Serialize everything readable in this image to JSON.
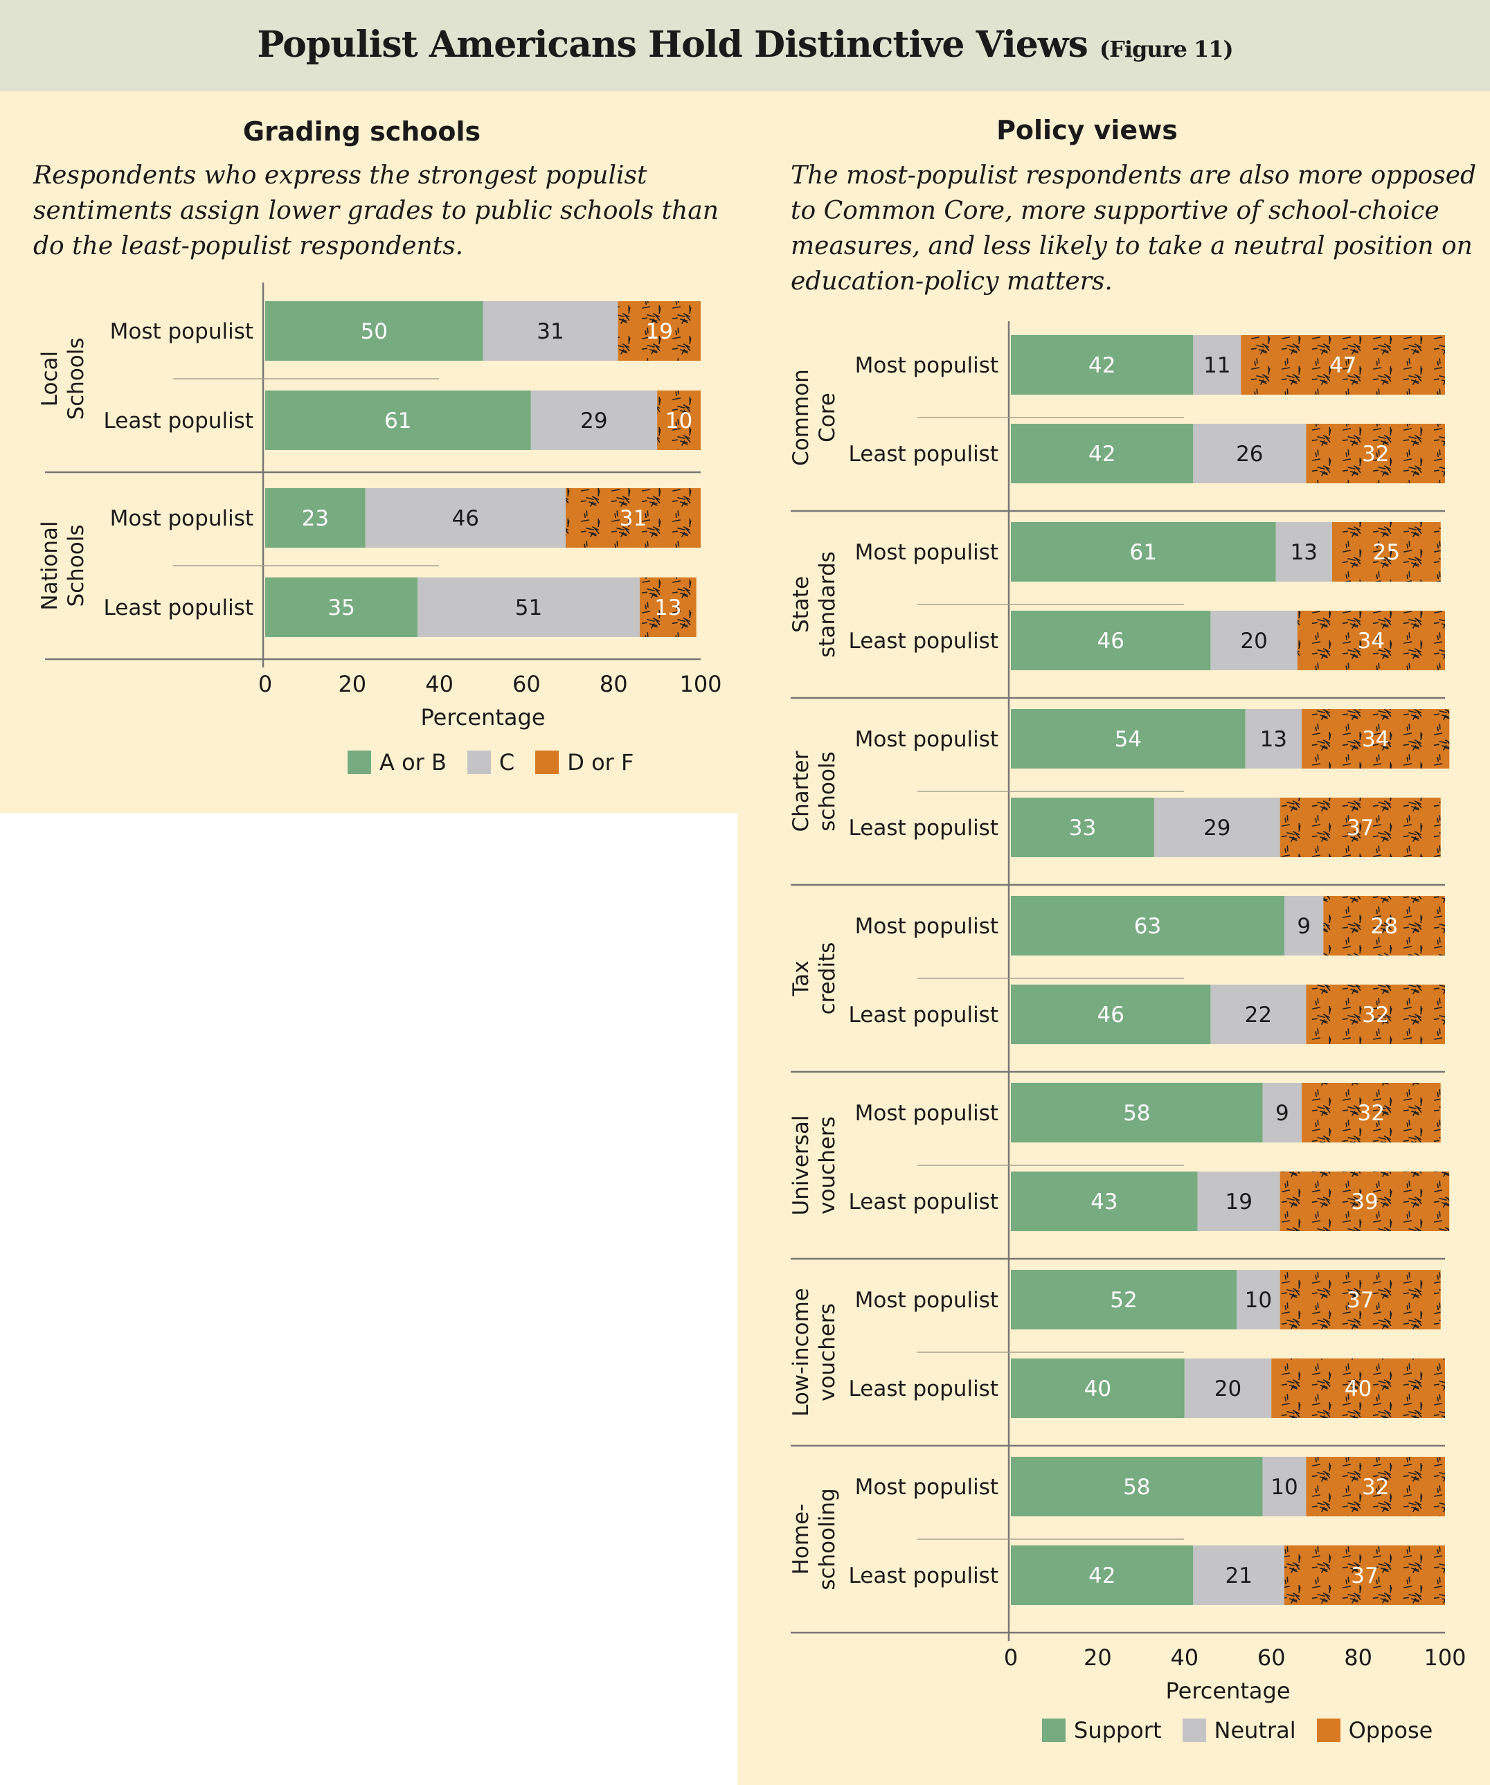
{
  "title": "Populist Americans Hold Distinctive Views",
  "figure_ref": "(Figure 11)",
  "colors": {
    "title_band": "#dfe3cf",
    "panel_bg": "#fdf1cf",
    "green": "#77ab80",
    "gray": "#c4c4c6",
    "orange": "#d77a22",
    "axis": "#777777",
    "pattern_ink": "#1f1f1f"
  },
  "left_panel": {
    "heading": "Grading schools",
    "subtitle_lines": [
      "Respondents who express the strongest populist",
      "sentiments assign lower grades to public schools than",
      "do the least-populist respondents."
    ]
  },
  "right_panel": {
    "heading": "Policy views",
    "subtitle_lines": [
      "The most-populist respondents are also more opposed",
      "to Common Core, more supportive of school-choice",
      "measures, and less likely to take a neutral position on",
      "education-policy matters."
    ]
  },
  "chart_data": [
    {
      "type": "bar",
      "orientation": "horizontal",
      "stacked": true,
      "xlabel": "Percentage",
      "xlim": [
        0,
        100
      ],
      "xticks": [
        0,
        20,
        40,
        60,
        80,
        100
      ],
      "legend": [
        "A or B",
        "C",
        "D or F"
      ],
      "legend_position": "bottom",
      "groups": [
        {
          "label_lines": [
            "Local",
            "Schools"
          ],
          "rows": [
            {
              "label": "Most populist",
              "values": [
                50,
                31,
                19
              ]
            },
            {
              "label": "Least populist",
              "values": [
                61,
                29,
                10
              ]
            }
          ]
        },
        {
          "label_lines": [
            "National",
            "Schools"
          ],
          "rows": [
            {
              "label": "Most populist",
              "values": [
                23,
                46,
                31
              ]
            },
            {
              "label": "Least populist",
              "values": [
                35,
                51,
                13
              ]
            }
          ]
        }
      ]
    },
    {
      "type": "bar",
      "orientation": "horizontal",
      "stacked": true,
      "xlabel": "Percentage",
      "xlim": [
        0,
        100
      ],
      "xticks": [
        0,
        20,
        40,
        60,
        80,
        100
      ],
      "legend": [
        "Support",
        "Neutral",
        "Oppose"
      ],
      "legend_position": "bottom",
      "groups": [
        {
          "label_lines": [
            "Common",
            "Core"
          ],
          "rows": [
            {
              "label": "Most populist",
              "values": [
                42,
                11,
                47
              ]
            },
            {
              "label": "Least populist",
              "values": [
                42,
                26,
                32
              ]
            }
          ]
        },
        {
          "label_lines": [
            "State",
            "standards"
          ],
          "rows": [
            {
              "label": "Most populist",
              "values": [
                61,
                13,
                25
              ]
            },
            {
              "label": "Least populist",
              "values": [
                46,
                20,
                34
              ]
            }
          ]
        },
        {
          "label_lines": [
            "Charter",
            "schools"
          ],
          "rows": [
            {
              "label": "Most populist",
              "values": [
                54,
                13,
                34
              ]
            },
            {
              "label": "Least populist",
              "values": [
                33,
                29,
                37
              ]
            }
          ]
        },
        {
          "label_lines": [
            "Tax",
            "credits"
          ],
          "rows": [
            {
              "label": "Most populist",
              "values": [
                63,
                9,
                28
              ]
            },
            {
              "label": "Least populist",
              "values": [
                46,
                22,
                32
              ]
            }
          ]
        },
        {
          "label_lines": [
            "Universal",
            "vouchers"
          ],
          "rows": [
            {
              "label": "Most populist",
              "values": [
                58,
                9,
                32
              ]
            },
            {
              "label": "Least populist",
              "values": [
                43,
                19,
                39
              ]
            }
          ]
        },
        {
          "label_lines": [
            "Low-income",
            "vouchers"
          ],
          "rows": [
            {
              "label": "Most populist",
              "values": [
                52,
                10,
                37
              ]
            },
            {
              "label": "Least populist",
              "values": [
                40,
                20,
                40
              ]
            }
          ]
        },
        {
          "label_lines": [
            "Home-",
            "schooling"
          ],
          "rows": [
            {
              "label": "Most populist",
              "values": [
                58,
                10,
                32
              ]
            },
            {
              "label": "Least populist",
              "values": [
                42,
                21,
                37
              ]
            }
          ]
        }
      ]
    }
  ]
}
